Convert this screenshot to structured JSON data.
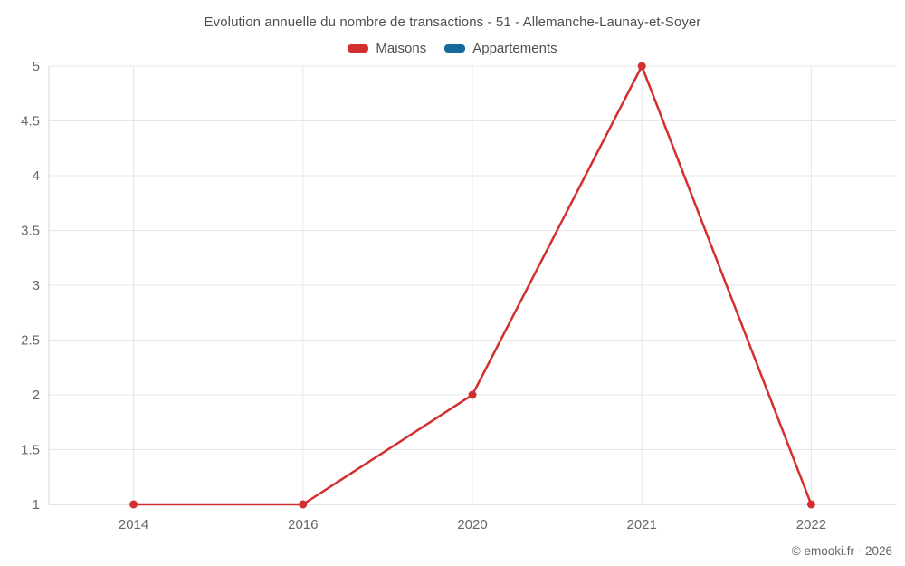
{
  "title": "Evolution annuelle du nombre de transactions - 51 - Allemanche-Launay-et-Soyer",
  "legend": {
    "items": [
      {
        "label": "Maisons",
        "color": "#d32f2f"
      },
      {
        "label": "Appartements",
        "color": "#16699d"
      }
    ]
  },
  "credits": "© emooki.fr - 2026",
  "colors": {
    "grid": "#e7e7e7",
    "axis_left": "#d9d9d9",
    "axis_bottom": "#c9c9c9",
    "tick_text": "#666666",
    "title_text": "#4f4f4f"
  },
  "chart_data": {
    "type": "line",
    "title": "Evolution annuelle du nombre de transactions - 51 - Allemanche-Launay-et-Soyer",
    "categories": [
      "2014",
      "2016",
      "2020",
      "2021",
      "2022"
    ],
    "series": [
      {
        "name": "Maisons",
        "color": "#d32f2f",
        "values": [
          1,
          1,
          2,
          5,
          1
        ],
        "marker": "circle"
      },
      {
        "name": "Appartements",
        "color": "#16699d",
        "values": []
      }
    ],
    "xlabel": "",
    "ylabel": "",
    "ylim": [
      1,
      5
    ],
    "y_ticks": [
      1,
      1.5,
      2,
      2.5,
      3,
      3.5,
      4,
      4.5,
      5
    ],
    "grid": true,
    "legend_position": "top",
    "credits": "© emooki.fr - 2026"
  }
}
